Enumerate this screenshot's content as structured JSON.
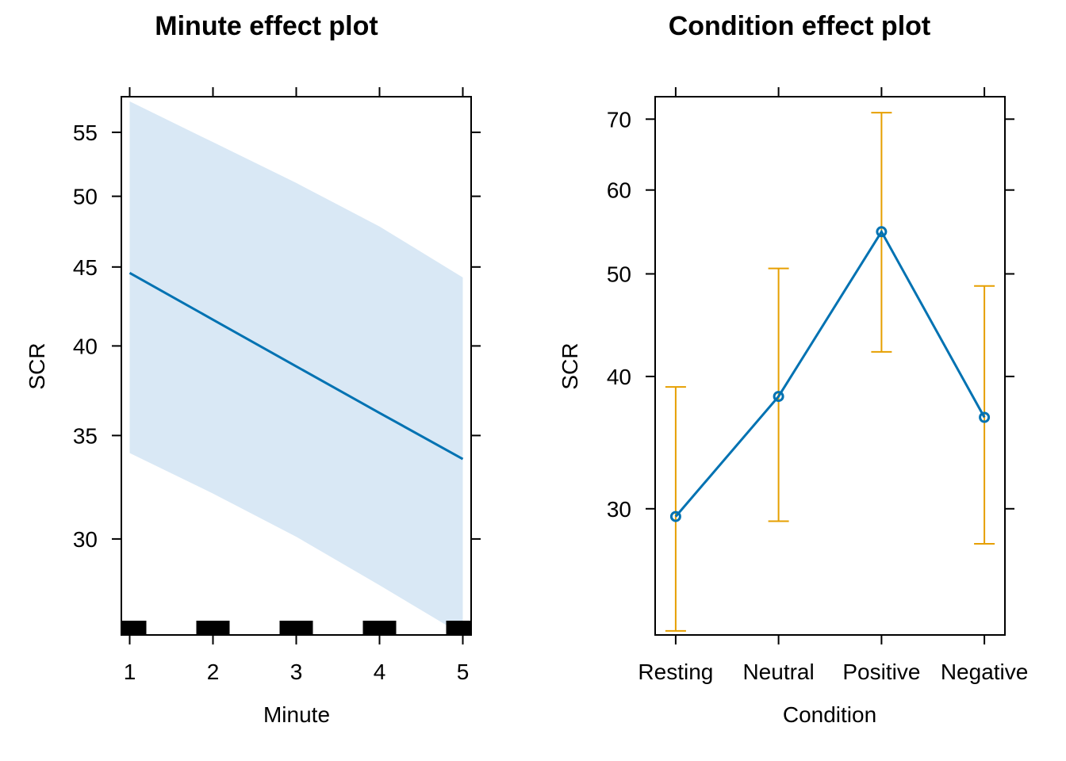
{
  "colors": {
    "line": "#0072B2",
    "band": "#D9E8F5",
    "errorbar": "#E69F00",
    "axis": "#000000",
    "rug": "#000000"
  },
  "chart_data": [
    {
      "type": "line",
      "title": "Minute effect plot",
      "xlabel": "Minute",
      "ylabel": "SCR",
      "y_scale": "log",
      "x": [
        1,
        2,
        3,
        4,
        5
      ],
      "x_ticks": [
        "1",
        "2",
        "3",
        "4",
        "5"
      ],
      "y_ticks": [
        "30",
        "35",
        "40",
        "45",
        "50",
        "55"
      ],
      "xlim": [
        0.9,
        5.1
      ],
      "ylim": [
        26,
        58
      ],
      "fit": [
        44.6,
        41.6,
        38.8,
        36.2,
        33.8
      ],
      "lower": [
        34.1,
        32.1,
        30.1,
        28.0,
        26.0
      ],
      "upper": [
        57.6,
        54.2,
        51.0,
        47.8,
        44.3
      ],
      "rug": [
        1,
        2,
        3,
        4,
        5
      ],
      "confidence_band": true,
      "grid": false
    },
    {
      "type": "line",
      "title": "Condition effect plot",
      "xlabel": "Condition",
      "ylabel": "SCR",
      "y_scale": "log",
      "categories": [
        "Resting",
        "Neutral",
        "Positive",
        "Negative"
      ],
      "y_ticks": [
        "30",
        "40",
        "50",
        "60",
        "70"
      ],
      "ylim": [
        22.8,
        73.5
      ],
      "fit": [
        29.5,
        38.3,
        54.8,
        36.6
      ],
      "lower": [
        23.0,
        29.2,
        42.2,
        27.8
      ],
      "upper": [
        39.1,
        50.6,
        71.0,
        48.7
      ],
      "error_bars": true,
      "grid": false
    }
  ]
}
